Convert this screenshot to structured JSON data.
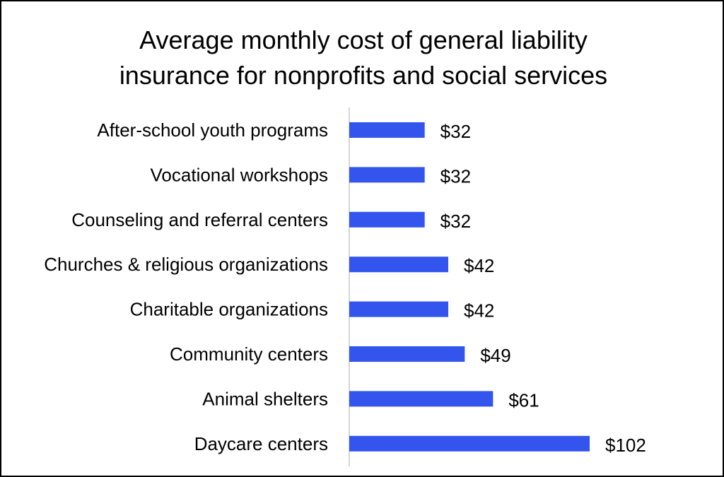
{
  "chart_data": {
    "type": "bar",
    "orientation": "horizontal",
    "title_lines": [
      "Average monthly cost of general liability",
      "insurance for nonprofits and social services"
    ],
    "categories": [
      "After-school youth programs",
      "Vocational workshops",
      "Counseling and referral centers",
      "Churches & religious organizations",
      "Charitable organizations",
      "Community centers",
      "Animal shelters",
      "Daycare centers"
    ],
    "values": [
      32,
      32,
      32,
      42,
      42,
      49,
      61,
      102
    ],
    "value_labels": [
      "$32",
      "$32",
      "$32",
      "$42",
      "$42",
      "$49",
      "$61",
      "$102"
    ],
    "xlim": [
      0,
      150
    ],
    "grid": false,
    "legend": "none",
    "xlabel": "",
    "ylabel": "",
    "bar_color": "#3355ee",
    "axis_color": "#c8c8c8"
  }
}
